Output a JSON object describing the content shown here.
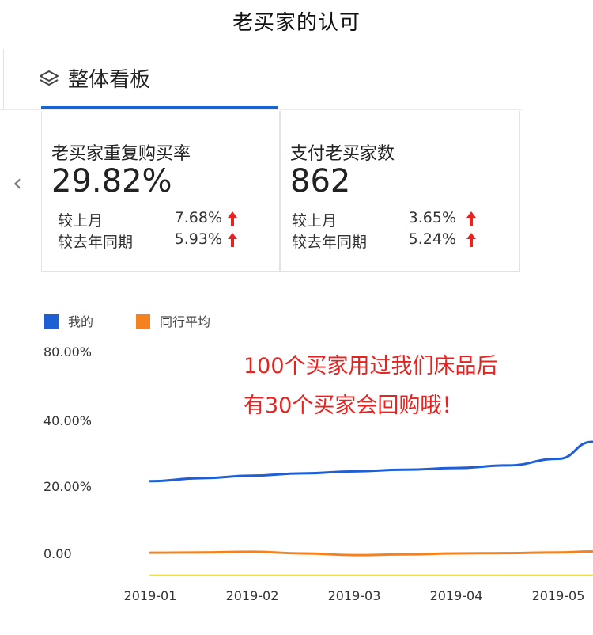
{
  "page_title": "老买家的认可",
  "panel": {
    "title": "整体看板",
    "icon": "layers-icon"
  },
  "cards": [
    {
      "label": "老买家重复购买率",
      "value": "29.82%",
      "comparisons": [
        {
          "label": "较上月",
          "value": "7.68%",
          "trend": "up"
        },
        {
          "label": "较去年同期",
          "value": "5.93%",
          "trend": "up"
        }
      ]
    },
    {
      "label": "支付老买家数",
      "value": "862",
      "comparisons": [
        {
          "label": "较上月",
          "value": "3.65%",
          "trend": "up"
        },
        {
          "label": "较去年同期",
          "value": "5.24%",
          "trend": "up"
        }
      ]
    }
  ],
  "nav": {
    "prev_icon": "chevron-left-icon"
  },
  "annotation": [
    "100个买家用过我们床品后",
    "有30个买家会回购哦！"
  ],
  "colors": {
    "accent": "#1565d8",
    "mine": "#1f5fd6",
    "peer": "#f6821f",
    "trend_up": "#e8231f",
    "annotation": "#e8231f",
    "baseline": "#f2e03a"
  },
  "chart_data": {
    "type": "line",
    "categories": [
      "2019-01",
      "2019-02",
      "2019-03",
      "2019-04",
      "2019-05"
    ],
    "ytick_labels": [
      "80.00%",
      "40.00%",
      "20.00%",
      "0.00"
    ],
    "ytick_values": [
      80,
      40,
      20,
      0
    ],
    "legend": [
      "我的",
      "同行平均"
    ],
    "legend_position": "top-left",
    "series": [
      {
        "name": "我的",
        "color": "#1f5fd6",
        "x": [
          0,
          0.5,
          1,
          1.5,
          2,
          2.5,
          3,
          3.5,
          4,
          4.6
        ],
        "values": [
          21.5,
          22.4,
          23.2,
          23.9,
          24.5,
          25.0,
          25.5,
          26.3,
          28.3,
          33.5
        ]
      },
      {
        "name": "同行平均",
        "color": "#f6821f",
        "x": [
          0,
          0.5,
          1,
          1.5,
          2,
          2.5,
          3,
          3.5,
          4,
          4.6
        ],
        "values": [
          0.2,
          0.3,
          0.5,
          0.0,
          -0.5,
          -0.3,
          0.0,
          0.1,
          0.3,
          0.6
        ]
      },
      {
        "name": "",
        "color": "#f2e03a",
        "x": [
          0,
          4.6
        ],
        "values": [
          -6.5,
          -6.5
        ]
      }
    ],
    "xlabel": "",
    "ylabel": "",
    "grid": false
  }
}
